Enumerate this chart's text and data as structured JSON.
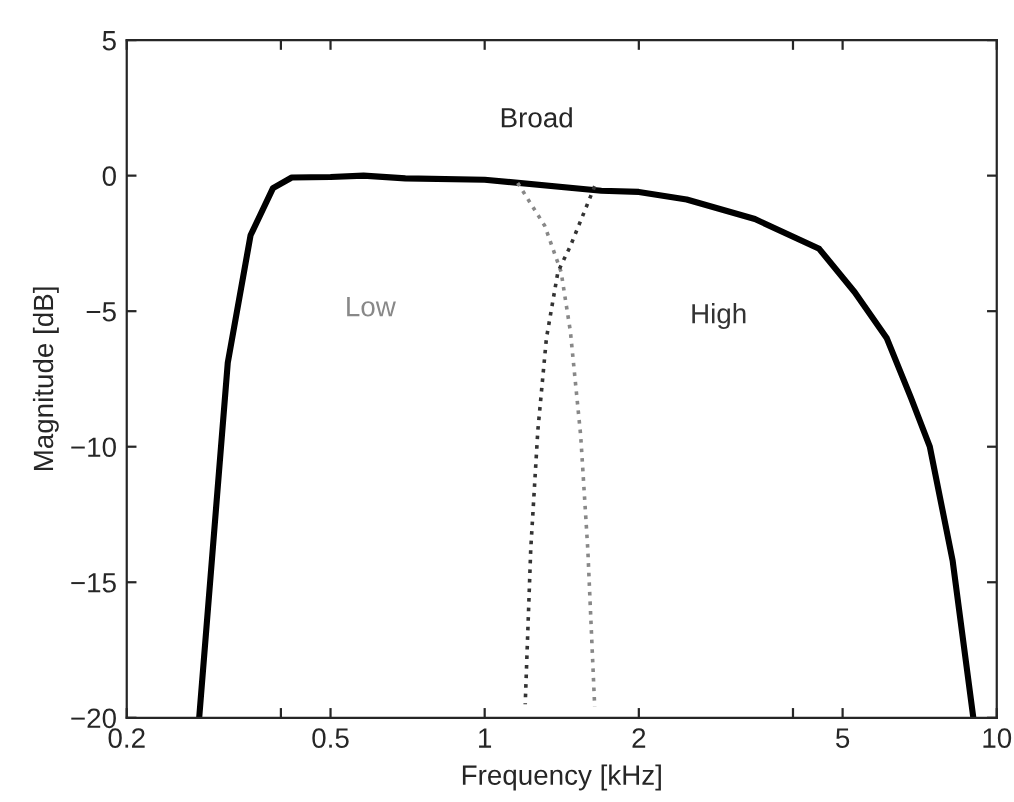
{
  "chart_data": {
    "type": "line",
    "xlabel": "Frequency [kHz]",
    "ylabel": "Magnitude [dB]",
    "log": "x",
    "xlim": [
      0.2,
      10
    ],
    "xticks": [
      0.2,
      {
        "value": 0.4,
        "label": null
      },
      0.5,
      1,
      2,
      {
        "value": 4,
        "label": null
      },
      5,
      10
    ],
    "ylim": [
      -20,
      5
    ],
    "yticks": [
      -20,
      -15,
      -10,
      -5,
      0,
      5
    ],
    "grid": false,
    "legend": false,
    "marker": "none",
    "series": [
      {
        "name": "Broad",
        "color": "#000000",
        "line_style": "solid",
        "x": [
          0.277,
          0.315,
          0.349,
          0.386,
          0.42,
          0.5,
          0.58,
          0.7,
          1.0,
          1.69,
          2.0,
          2.48,
          3.37,
          4.5,
          5.28,
          6.1,
          6.8,
          7.4,
          8.2,
          9.0
        ],
        "values": [
          -20,
          -6.9,
          -2.2,
          -0.46,
          -0.07,
          -0.05,
          0.0,
          -0.1,
          -0.15,
          -0.56,
          -0.6,
          -0.88,
          -1.6,
          -2.7,
          -4.3,
          -6.0,
          -8.2,
          -10,
          -14.2,
          -20
        ]
      },
      {
        "name": "Low",
        "color": "#888888",
        "line_style": "dotted",
        "x": [
          1.16,
          1.31,
          1.41,
          1.47,
          1.54,
          1.59,
          1.64
        ],
        "values": [
          -0.27,
          -1.85,
          -3.55,
          -5.74,
          -9.6,
          -13.8,
          -19.6
        ]
      },
      {
        "name": "High",
        "color": "#333333",
        "line_style": "dotted",
        "x": [
          1.64,
          1.47,
          1.39,
          1.32,
          1.27,
          1.23,
          1.2
        ],
        "values": [
          -0.39,
          -2.6,
          -3.55,
          -6.0,
          -9.4,
          -13.8,
          -19.5
        ]
      }
    ]
  }
}
